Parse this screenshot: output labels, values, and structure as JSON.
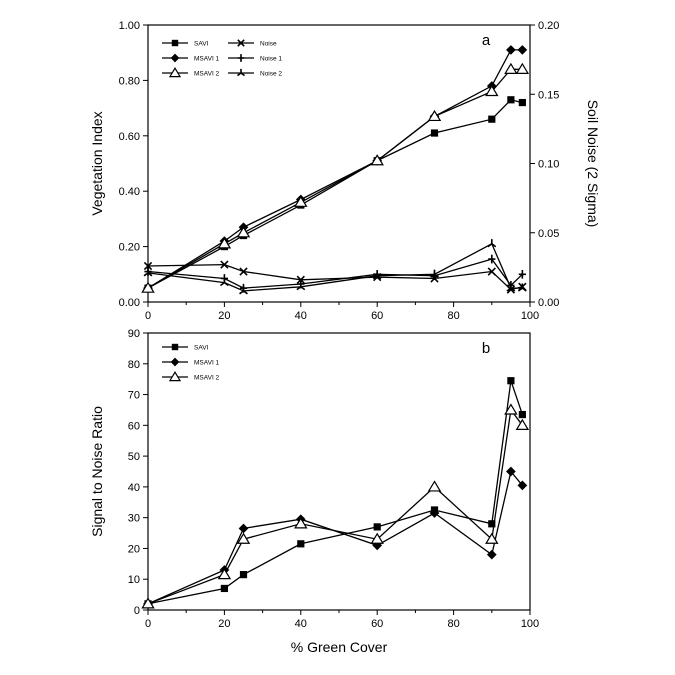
{
  "chart_data": [
    {
      "panel": "a",
      "type": "line",
      "xlabel": "",
      "ylabel": "Vegetation Index",
      "y2label": "Soil Noise (2 Sigma)",
      "xlim": [
        0,
        100
      ],
      "ylim": [
        0,
        1.0
      ],
      "y2lim": [
        0,
        0.2
      ],
      "xticks": [
        "0",
        "20",
        "40",
        "60",
        "80",
        "100"
      ],
      "yticks": [
        "0.00",
        "0.20",
        "0.40",
        "0.60",
        "0.80",
        "1.00"
      ],
      "y2ticks": [
        "0.00",
        "0.05",
        "0.10",
        "0.15",
        "0.20"
      ],
      "legend_position": "top-left",
      "series": [
        {
          "name": "SAVI",
          "axis": "left",
          "marker": "square",
          "x": [
            0,
            20,
            25,
            40,
            60,
            75,
            90,
            95,
            98
          ],
          "y": [
            0.05,
            0.2,
            0.24,
            0.35,
            0.51,
            0.61,
            0.66,
            0.73,
            0.72
          ]
        },
        {
          "name": "MSAVI 1",
          "axis": "left",
          "marker": "diamond",
          "x": [
            0,
            20,
            25,
            40,
            60,
            75,
            90,
            95,
            98
          ],
          "y": [
            0.05,
            0.22,
            0.27,
            0.37,
            0.51,
            0.67,
            0.78,
            0.91,
            0.91
          ]
        },
        {
          "name": "MSAVI 2",
          "axis": "left",
          "marker": "triangle",
          "x": [
            0,
            20,
            25,
            40,
            60,
            75,
            90,
            95,
            98
          ],
          "y": [
            0.05,
            0.21,
            0.25,
            0.36,
            0.51,
            0.67,
            0.76,
            0.84,
            0.84
          ]
        },
        {
          "name": "Noise",
          "axis": "right",
          "marker": "x",
          "x": [
            0,
            20,
            25,
            40,
            60,
            75,
            90,
            95,
            98
          ],
          "y": [
            0.026,
            0.027,
            0.022,
            0.016,
            0.018,
            0.017,
            0.022,
            0.009,
            0.011
          ]
        },
        {
          "name": "Noise 1",
          "axis": "right",
          "marker": "plus",
          "x": [
            0,
            20,
            25,
            40,
            60,
            75,
            90,
            95,
            98
          ],
          "y": [
            0.022,
            0.017,
            0.01,
            0.013,
            0.02,
            0.019,
            0.031,
            0.012,
            0.02
          ]
        },
        {
          "name": "Noise 2",
          "axis": "right",
          "marker": "star",
          "x": [
            0,
            20,
            25,
            40,
            60,
            75,
            90,
            95,
            98
          ],
          "y": [
            0.021,
            0.014,
            0.008,
            0.011,
            0.019,
            0.02,
            0.042,
            0.01,
            0.01
          ]
        }
      ]
    },
    {
      "panel": "b",
      "type": "line",
      "xlabel": "% Green Cover",
      "ylabel": "Signal to Noise Ratio",
      "xlim": [
        0,
        100
      ],
      "ylim": [
        0,
        90
      ],
      "xticks": [
        "0",
        "20",
        "40",
        "60",
        "80",
        "100"
      ],
      "yticks": [
        "0",
        "10",
        "20",
        "30",
        "40",
        "50",
        "60",
        "70",
        "80",
        "90"
      ],
      "legend_position": "top-left",
      "series": [
        {
          "name": "SAVI",
          "marker": "square",
          "x": [
            0,
            20,
            25,
            40,
            60,
            75,
            90,
            95,
            98
          ],
          "y": [
            2,
            7,
            11.5,
            21.5,
            27,
            32.5,
            28,
            74.5,
            63.5
          ]
        },
        {
          "name": "MSAVI 1",
          "marker": "diamond",
          "x": [
            0,
            20,
            25,
            40,
            60,
            75,
            90,
            95,
            98
          ],
          "y": [
            2,
            13,
            26.5,
            29.5,
            21,
            31.5,
            18,
            45,
            40.5
          ]
        },
        {
          "name": "MSAVI 2",
          "marker": "triangle",
          "x": [
            0,
            20,
            25,
            40,
            60,
            75,
            90,
            95,
            98
          ],
          "y": [
            2,
            11.5,
            23,
            28,
            23,
            40,
            23,
            65,
            60
          ]
        }
      ]
    }
  ]
}
